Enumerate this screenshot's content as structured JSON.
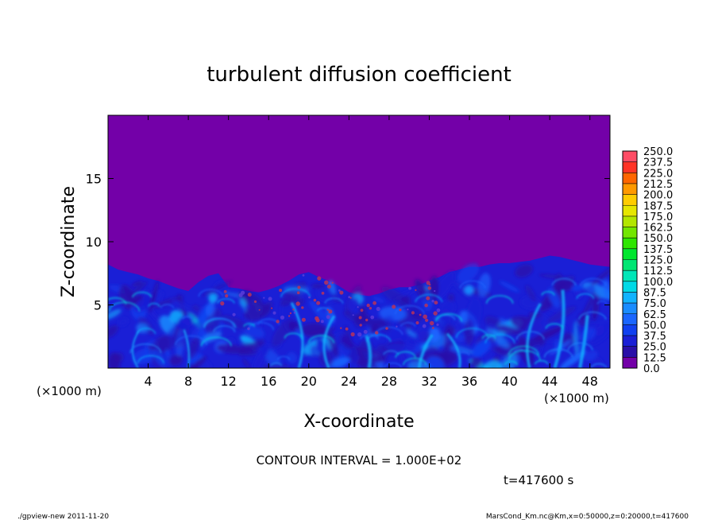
{
  "chart_data": {
    "type": "heatmap",
    "title": "turbulent diffusion coefficient",
    "xlabel": "X-coordinate",
    "ylabel": "Z-coordinate",
    "x_unit_label": "(×1000 m)",
    "y_unit_label": "(×1000 m)",
    "xlim": [
      0,
      50
    ],
    "ylim": [
      0,
      20
    ],
    "x_ticks": [
      4,
      8,
      12,
      16,
      20,
      24,
      28,
      32,
      36,
      40,
      44,
      48
    ],
    "y_ticks": [
      5,
      10,
      15
    ],
    "colorbar": {
      "levels": [
        "0.0",
        "12.5",
        "25.0",
        "37.5",
        "50.0",
        "62.5",
        "75.0",
        "87.5",
        "100.0",
        "112.5",
        "125.0",
        "137.5",
        "150.0",
        "162.5",
        "175.0",
        "187.5",
        "200.0",
        "212.5",
        "225.0",
        "237.5",
        "250.0"
      ],
      "colors": [
        "#7300a8",
        "#2a0fa8",
        "#1a1fd6",
        "#1040f0",
        "#1a66ff",
        "#1a8cff",
        "#12b3ff",
        "#00d9e6",
        "#00e6b8",
        "#00e673",
        "#00e62e",
        "#2ee600",
        "#73e600",
        "#b3e600",
        "#e6e600",
        "#ffcc00",
        "#ff9900",
        "#ff6600",
        "#ff3326",
        "#ff4d66"
      ]
    },
    "boundary_layer_top_km": [
      8.2,
      7.8,
      7.6,
      7.4,
      7.1,
      6.9,
      6.6,
      6.3,
      6.1,
      6.8,
      7.3,
      7.5,
      6.4,
      6.3,
      6.1,
      6.0,
      6.2,
      6.5,
      6.9,
      7.4,
      7.6,
      7.2,
      6.9,
      6.5,
      6.0,
      5.8,
      5.7,
      5.9,
      6.2,
      6.4,
      6.4,
      6.6,
      6.9,
      7.2,
      7.6,
      7.8,
      8.0,
      8.0,
      8.2,
      8.3,
      8.3,
      8.4,
      8.5,
      8.7,
      8.9,
      8.8,
      8.6,
      8.4,
      8.2,
      8.1,
      8.0
    ],
    "annotations": {
      "contour_interval": "CONTOUR INTERVAL = 1.000E+02",
      "time": "t=417600 s"
    }
  },
  "footer": {
    "left": "./gpview-new   2011-11-20",
    "right": "MarsCond_Km.nc@Km,x=0:50000,z=0:20000,t=417600"
  },
  "colors": {
    "background_field": "#7300a8",
    "frame": "#000000"
  }
}
